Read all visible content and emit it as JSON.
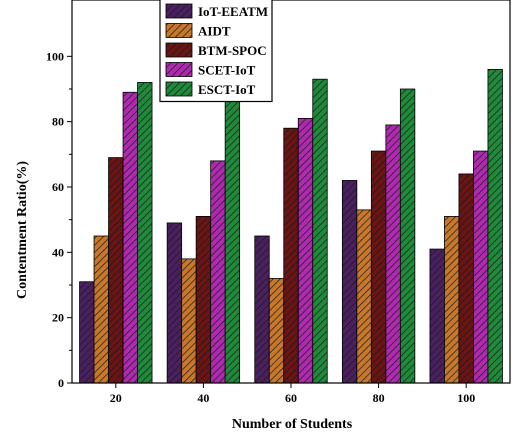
{
  "chart_data": {
    "type": "bar",
    "title": "",
    "xlabel": "Number of Students",
    "ylabel": "Contentment Ratio(%)",
    "categories": [
      "20",
      "40",
      "60",
      "80",
      "100"
    ],
    "ylim": [
      0,
      105
    ],
    "yticks": [
      0,
      20,
      40,
      60,
      80,
      100
    ],
    "grid": false,
    "legend_position": "top-left",
    "series": [
      {
        "name": "IoT-EEATM",
        "color": "#4a2060",
        "values": [
          31,
          49,
          45,
          62,
          41
        ]
      },
      {
        "name": "AIDT",
        "color": "#c8782a",
        "values": [
          45,
          38,
          32,
          53,
          51
        ]
      },
      {
        "name": "BTM-SPOC",
        "color": "#6a1414",
        "values": [
          69,
          51,
          78,
          71,
          64
        ]
      },
      {
        "name": "SCET-IoT",
        "color": "#b02ab0",
        "values": [
          89,
          68,
          81,
          79,
          71
        ]
      },
      {
        "name": "ESCT-IoT",
        "color": "#1f8a3a",
        "values": [
          92,
          89,
          93,
          90,
          96
        ]
      }
    ]
  }
}
